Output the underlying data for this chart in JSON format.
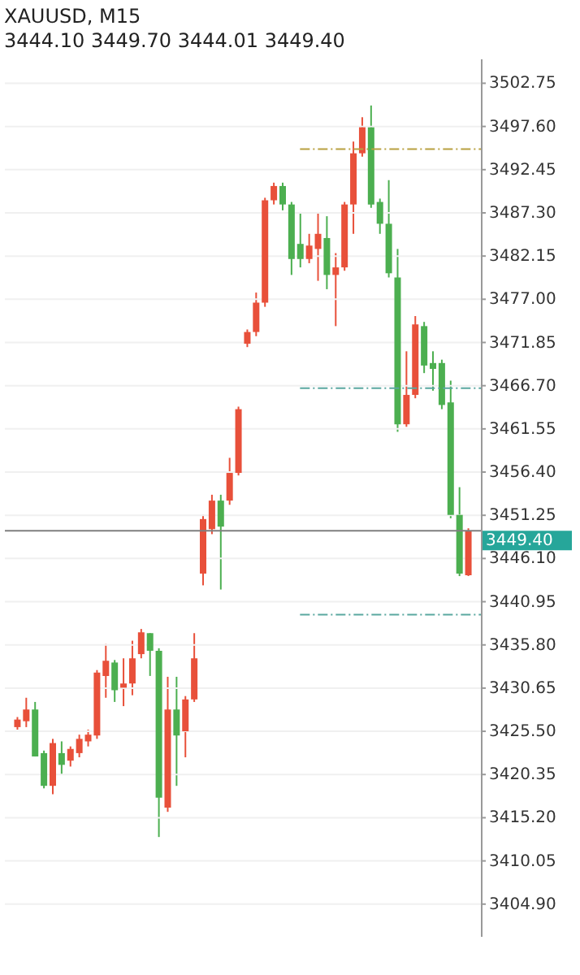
{
  "chart_data": {
    "type": "candlestick",
    "title": "XAUUSD, M15",
    "subtitle": "3444.10 3449.70 3444.01 3449.40",
    "categories": [
      null,
      null,
      null,
      null,
      null,
      null,
      null,
      null,
      null,
      null,
      null,
      null,
      null,
      null,
      null,
      null,
      null,
      null,
      null,
      null,
      null,
      null,
      null,
      null,
      null,
      null,
      null,
      null,
      null,
      null,
      null,
      null,
      null,
      null,
      null,
      null,
      null,
      null,
      null,
      null,
      null,
      null,
      null,
      null,
      null,
      null,
      null,
      null,
      null,
      null,
      null,
      null
    ],
    "ohlc": [
      [
        3426.0,
        3427.2,
        3425.7,
        3426.9
      ],
      [
        3426.7,
        3429.5,
        3426.0,
        3428.1
      ],
      [
        3428.1,
        3429.0,
        3422.5,
        3422.5
      ],
      [
        3422.9,
        3423.2,
        3418.7,
        3419.0
      ],
      [
        3419.0,
        3424.6,
        3418.0,
        3424.1
      ],
      [
        3422.9,
        3424.3,
        3420.3,
        3421.5
      ],
      [
        3422.0,
        3423.7,
        3421.3,
        3423.4
      ],
      [
        3422.9,
        3425.1,
        3422.4,
        3424.6
      ],
      [
        3424.3,
        3425.7,
        3423.7,
        3425.1
      ],
      [
        3425.0,
        3432.8,
        3424.6,
        3432.5
      ],
      [
        3432.1,
        3435.9,
        3429.5,
        3433.9
      ],
      [
        3433.7,
        3434.0,
        3429.0,
        3430.4
      ],
      [
        3430.7,
        3434.2,
        3428.5,
        3431.2
      ],
      [
        3431.2,
        3436.3,
        3429.8,
        3434.2
      ],
      [
        3434.7,
        3437.7,
        3434.2,
        3437.3
      ],
      [
        3437.2,
        3437.2,
        3432.1,
        3435.1
      ],
      [
        3435.1,
        3435.4,
        3412.9,
        3417.6
      ],
      [
        3416.4,
        3432.0,
        3415.9,
        3428.1
      ],
      [
        3428.1,
        3432.0,
        3419.0,
        3425.0
      ],
      [
        3425.5,
        3429.7,
        3422.4,
        3429.3
      ],
      [
        3429.3,
        3437.2,
        3429.0,
        3434.2
      ],
      [
        3444.3,
        3451.3,
        3442.9,
        3450.8
      ],
      [
        3449.6,
        3453.7,
        3449.0,
        3453.0
      ],
      [
        3453.0,
        3453.7,
        3442.4,
        3449.9
      ],
      [
        3453.0,
        3458.1,
        3452.5,
        3456.3
      ],
      [
        3456.3,
        3464.2,
        3456.0,
        3463.9
      ],
      [
        3471.7,
        3473.4,
        3471.3,
        3473.1
      ],
      [
        3473.1,
        3477.8,
        3472.6,
        3476.6
      ],
      [
        3476.6,
        3489.1,
        3476.1,
        3488.8
      ],
      [
        3488.8,
        3490.9,
        3488.3,
        3490.5
      ],
      [
        3490.5,
        3490.9,
        3487.6,
        3488.3
      ],
      [
        3488.3,
        3488.6,
        3479.9,
        3481.8
      ],
      [
        3483.6,
        3487.4,
        3480.8,
        3481.8
      ],
      [
        3481.8,
        3484.8,
        3481.3,
        3483.4
      ],
      [
        3483.0,
        3487.4,
        3479.2,
        3484.8
      ],
      [
        3484.3,
        3486.9,
        3478.2,
        3479.9
      ],
      [
        3479.9,
        3482.5,
        3473.8,
        3480.8
      ],
      [
        3480.8,
        3488.6,
        3480.4,
        3488.3
      ],
      [
        3488.3,
        3495.8,
        3484.8,
        3494.4
      ],
      [
        3494.4,
        3498.7,
        3494.0,
        3497.5
      ],
      [
        3497.5,
        3500.1,
        3487.9,
        3488.3
      ],
      [
        3488.6,
        3489.0,
        3484.8,
        3486.0
      ],
      [
        3486.0,
        3491.2,
        3479.6,
        3480.1
      ],
      [
        3479.6,
        3483.0,
        3461.2,
        3462.1
      ],
      [
        3462.1,
        3470.8,
        3461.8,
        3465.6
      ],
      [
        3465.6,
        3475.0,
        3465.2,
        3474.0
      ],
      [
        3473.8,
        3474.3,
        3468.2,
        3469.1
      ],
      [
        3469.4,
        3470.8,
        3466.1,
        3468.7
      ],
      [
        3469.4,
        3469.8,
        3463.9,
        3464.4
      ],
      [
        3464.7,
        3467.3,
        3450.9,
        3451.3
      ],
      [
        3451.3,
        3454.6,
        3444.0,
        3444.3
      ],
      [
        3444.1,
        3449.7,
        3444.01,
        3449.4
      ]
    ],
    "colors": [
      "#e8503a",
      "#e8503a",
      "#4caf50",
      "#4caf50",
      "#e8503a",
      "#4caf50",
      "#e8503a",
      "#e8503a",
      "#e8503a",
      "#e8503a",
      "#e8503a",
      "#4caf50",
      "#e8503a",
      "#e8503a",
      "#e8503a",
      "#4caf50",
      "#4caf50",
      "#e8503a",
      "#4caf50",
      "#e8503a",
      "#e8503a",
      "#e8503a",
      "#e8503a",
      "#4caf50",
      "#e8503a",
      "#e8503a",
      "#e8503a",
      "#e8503a",
      "#e8503a",
      "#e8503a",
      "#4caf50",
      "#4caf50",
      "#4caf50",
      "#e8503a",
      "#e8503a",
      "#4caf50",
      "#e8503a",
      "#e8503a",
      "#e8503a",
      "#e8503a",
      "#4caf50",
      "#4caf50",
      "#4caf50",
      "#4caf50",
      "#e8503a",
      "#e8503a",
      "#4caf50",
      "#4caf50",
      "#4caf50",
      "#4caf50",
      "#4caf50",
      "#e8503a"
    ],
    "ylim": [
      3401.1,
      3505.7
    ],
    "yticks": [
      {
        "value": 3404.9,
        "label": "3404.90"
      },
      3410.05,
      {
        "value": 3415.2,
        "label": "3415.20"
      },
      3420.35,
      {
        "value": 3425.5,
        "label": "3425.50"
      },
      3430.65,
      {
        "value": 3435.8,
        "label": "3435.80"
      },
      3440.95,
      {
        "value": 3446.1,
        "label": "3446.10"
      },
      3451.25,
      {
        "value": 3456.4,
        "label": "3456.40"
      },
      3461.55,
      {
        "value": 3466.7,
        "label": "3466.70"
      },
      3471.85,
      {
        "value": 3477,
        "label": "3477.00"
      },
      3482.15,
      {
        "value": 3487.3,
        "label": "3487.30"
      },
      3492.45,
      {
        "value": 3497.6,
        "label": "3497.60"
      },
      3502.75
    ],
    "grid": "y",
    "ref_lines": [
      {
        "axis": "y",
        "value": 3449.4,
        "label": "3449.40",
        "color": "#7f7f7f",
        "line_style": "solid"
      },
      {
        "axis": "y",
        "value": 3494.9,
        "color": "#b8a040",
        "line_style": "dashed"
      },
      {
        "axis": "y",
        "value": 3466.4,
        "color": "#5aa8a0",
        "line_style": "dashed"
      },
      {
        "axis": "y",
        "value": 3439.4,
        "color": "#5aa8a0",
        "line_style": "dashed"
      }
    ]
  }
}
